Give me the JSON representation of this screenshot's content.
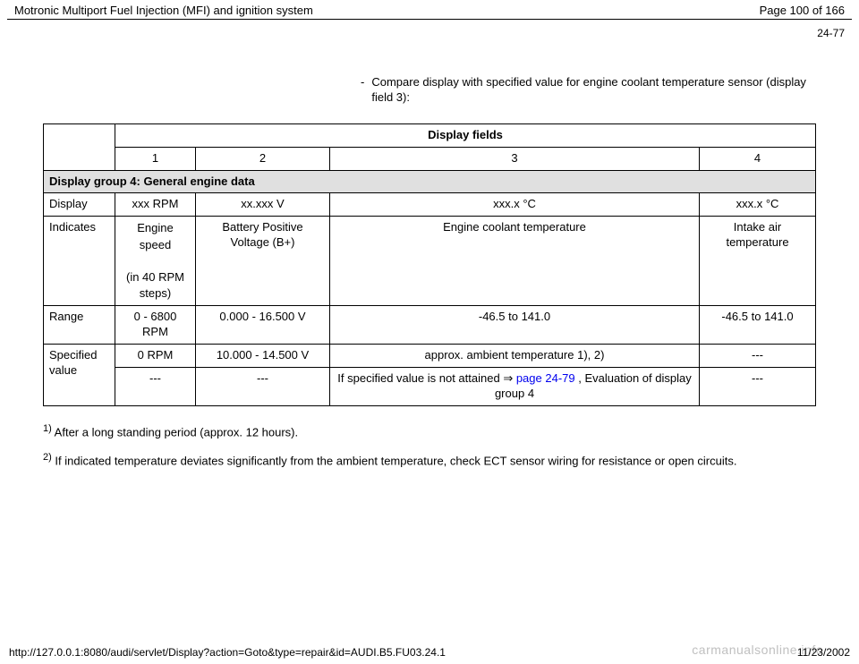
{
  "header": {
    "title": "Motronic Multiport Fuel Injection (MFI) and ignition system",
    "page_of": "Page 100 of 166"
  },
  "page_ref": "24-77",
  "bullet": {
    "dash": "-",
    "text": "Compare display with specified value for engine coolant temperature sensor (display field 3):"
  },
  "table": {
    "display_fields_label": "Display fields",
    "col_nums": {
      "c1": "1",
      "c2": "2",
      "c3": "3",
      "c4": "4"
    },
    "group_header": "Display group 4: General engine data",
    "rows": {
      "display": {
        "label": "Display",
        "c1": "xxx RPM",
        "c2": "xx.xxx V",
        "c3": "xxx.x °C",
        "c4": "xxx.x °C"
      },
      "indicates": {
        "label": "Indicates",
        "c1_line1": "Engine speed",
        "c1_line2": "(in 40 RPM steps)",
        "c2": "Battery Positive Voltage (B+)",
        "c3": "Engine coolant temperature",
        "c4": "Intake air temperature"
      },
      "range": {
        "label": "Range",
        "c1": "0 - 6800 RPM",
        "c2": "0.000 - 16.500 V",
        "c3": "-46.5 to 141.0",
        "c4": "-46.5 to 141.0"
      },
      "spec": {
        "label": "Specified value",
        "c1": "0 RPM",
        "c2": "10.000 - 14.500 V",
        "c3": "approx. ambient temperature 1), 2)",
        "c4": "---"
      },
      "spec2": {
        "c1": "---",
        "c2": "---",
        "c3_pre": "If specified value is not attained ",
        "c3_arrow": "⇒",
        "c3_link": " page 24-79",
        "c3_post": " , Evaluation of display group 4",
        "c4": "---"
      }
    }
  },
  "footnotes": {
    "fn1_num": "1)",
    "fn1_text": " After a long standing period (approx. 12 hours).",
    "fn2_num": "2)",
    "fn2_text": " If indicated temperature deviates significantly from the ambient temperature, check ECT sensor wiring for resistance or open circuits."
  },
  "footer": {
    "url": "http://127.0.0.1:8080/audi/servlet/Display?action=Goto&type=repair&id=AUDI.B5.FU03.24.1",
    "date": "11/23/2002"
  },
  "watermark": "carmanualsonline.info"
}
